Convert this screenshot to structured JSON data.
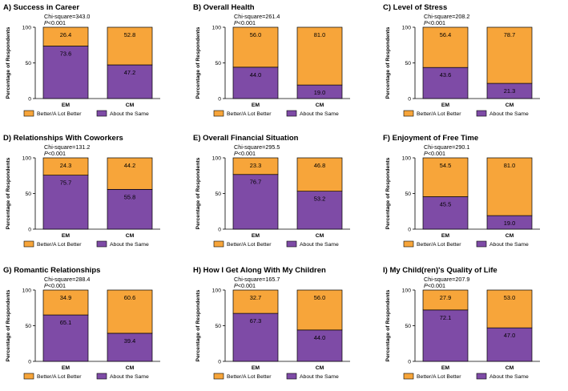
{
  "figure": {
    "legend": {
      "top_label": "Better/A Lot Better",
      "bottom_label": "About the Same"
    },
    "colors": {
      "top": "#F7A53A",
      "bottom": "#7E4BA6",
      "outline": "#000000"
    }
  },
  "chart_data": [
    {
      "type": "bar",
      "stacked": true,
      "title": "A) Success in Career",
      "stat_line1": "Chi-square=343.0",
      "stat_p": "P",
      "stat_rest": "<0.001",
      "ylabel": "Percentage of Respondents",
      "ylim": [
        0,
        100
      ],
      "yticks": [
        "0",
        "50",
        "100"
      ],
      "categories": [
        "EM",
        "CM"
      ],
      "series": [
        {
          "name": "About the Same",
          "values": [
            73.6,
            47.2
          ]
        },
        {
          "name": "Better/A Lot Better",
          "values": [
            26.4,
            52.8
          ]
        }
      ],
      "labels": {
        "bottom": [
          "73.6",
          "47.2"
        ],
        "top": [
          "26.4",
          "52.8"
        ]
      }
    },
    {
      "type": "bar",
      "stacked": true,
      "title": "B) Overall Health",
      "stat_line1": "Chi-square=261.4",
      "stat_p": "P",
      "stat_rest": "<0.001",
      "ylabel": "Percentage of Respondents",
      "ylim": [
        0,
        100
      ],
      "yticks": [
        "0",
        "50",
        "100"
      ],
      "categories": [
        "EM",
        "CM"
      ],
      "series": [
        {
          "name": "About the Same",
          "values": [
            44.0,
            19.0
          ]
        },
        {
          "name": "Better/A Lot Better",
          "values": [
            56.0,
            81.0
          ]
        }
      ],
      "labels": {
        "bottom": [
          "44.0",
          "19.0"
        ],
        "top": [
          "56.0",
          "81.0"
        ]
      }
    },
    {
      "type": "bar",
      "stacked": true,
      "title": "C) Level of Stress",
      "stat_line1": "Chi-square=208.2",
      "stat_p": "P",
      "stat_rest": "<0.001",
      "ylabel": "Percentage of Respondents",
      "ylim": [
        0,
        100
      ],
      "yticks": [
        "0",
        "50",
        "100"
      ],
      "categories": [
        "EM",
        "CM"
      ],
      "series": [
        {
          "name": "About the Same",
          "values": [
            43.6,
            21.3
          ]
        },
        {
          "name": "Better/A Lot Better",
          "values": [
            56.4,
            78.7
          ]
        }
      ],
      "labels": {
        "bottom": [
          "43.6",
          "21.3"
        ],
        "top": [
          "56.4",
          "78.7"
        ]
      }
    },
    {
      "type": "bar",
      "stacked": true,
      "title": "D) Relationships With Coworkers",
      "stat_line1": "Chi-square=131.2",
      "stat_p": "P",
      "stat_rest": "<0.001",
      "ylabel": "Percentage of Respondents",
      "ylim": [
        0,
        100
      ],
      "yticks": [
        "0",
        "50",
        "100"
      ],
      "categories": [
        "EM",
        "CM"
      ],
      "series": [
        {
          "name": "About the Same",
          "values": [
            75.7,
            55.8
          ]
        },
        {
          "name": "Better/A Lot Better",
          "values": [
            24.3,
            44.2
          ]
        }
      ],
      "labels": {
        "bottom": [
          "75.7",
          "55.8"
        ],
        "top": [
          "24.3",
          "44.2"
        ]
      }
    },
    {
      "type": "bar",
      "stacked": true,
      "title": "E) Overall Financial Situation",
      "stat_line1": "Chi-square=295.5",
      "stat_p": "P",
      "stat_rest": "<0.001",
      "ylabel": "Percentage of Respondents",
      "ylim": [
        0,
        100
      ],
      "yticks": [
        "0",
        "50",
        "100"
      ],
      "categories": [
        "EM",
        "CM"
      ],
      "series": [
        {
          "name": "About the Same",
          "values": [
            76.7,
            53.2
          ]
        },
        {
          "name": "Better/A Lot Better",
          "values": [
            23.3,
            46.8
          ]
        }
      ],
      "labels": {
        "bottom": [
          "76.7",
          "53.2"
        ],
        "top": [
          "23.3",
          "46.8"
        ]
      }
    },
    {
      "type": "bar",
      "stacked": true,
      "title": "F) Enjoyment of Free Time",
      "stat_line1": "Chi-square=290.1",
      "stat_p": "P",
      "stat_rest": "<0.001",
      "ylabel": "Percentage of Respondents",
      "ylim": [
        0,
        100
      ],
      "yticks": [
        "0",
        "50",
        "100"
      ],
      "categories": [
        "EM",
        "CM"
      ],
      "series": [
        {
          "name": "About the Same",
          "values": [
            45.5,
            19.0
          ]
        },
        {
          "name": "Better/A Lot Better",
          "values": [
            54.5,
            81.0
          ]
        }
      ],
      "labels": {
        "bottom": [
          "45.5",
          "19.0"
        ],
        "top": [
          "54.5",
          "81.0"
        ]
      }
    },
    {
      "type": "bar",
      "stacked": true,
      "title": "G) Romantic Relationships",
      "stat_line1": "Chi-square=288.4",
      "stat_p": "P",
      "stat_rest": "<0.001",
      "ylabel": "Percentage of Respondents",
      "ylim": [
        0,
        100
      ],
      "yticks": [
        "0",
        "50",
        "100"
      ],
      "categories": [
        "EM",
        "CM"
      ],
      "series": [
        {
          "name": "About the Same",
          "values": [
            65.1,
            39.4
          ]
        },
        {
          "name": "Better/A Lot Better",
          "values": [
            34.9,
            60.6
          ]
        }
      ],
      "labels": {
        "bottom": [
          "65.1",
          "39.4"
        ],
        "top": [
          "34.9",
          "60.6"
        ]
      }
    },
    {
      "type": "bar",
      "stacked": true,
      "title": "H) How I Get Along With My Children",
      "stat_line1": "Chi-square=165.7",
      "stat_p": "P",
      "stat_rest": "<0.001",
      "ylabel": "Percentage of Respondents",
      "ylim": [
        0,
        100
      ],
      "yticks": [
        "0",
        "50",
        "100"
      ],
      "categories": [
        "EM",
        "CM"
      ],
      "series": [
        {
          "name": "About the Same",
          "values": [
            67.3,
            44.0
          ]
        },
        {
          "name": "Better/A Lot Better",
          "values": [
            32.7,
            56.0
          ]
        }
      ],
      "labels": {
        "bottom": [
          "67.3",
          "44.0"
        ],
        "top": [
          "32.7",
          "56.0"
        ]
      }
    },
    {
      "type": "bar",
      "stacked": true,
      "title": "I) My Child(ren)'s Quality of  Life",
      "stat_line1": "Chi-square=207.9",
      "stat_p": "P",
      "stat_rest": "<0.001",
      "ylabel": "Percentage of Respondents",
      "ylim": [
        0,
        100
      ],
      "yticks": [
        "0",
        "50",
        "100"
      ],
      "categories": [
        "EM",
        "CM"
      ],
      "series": [
        {
          "name": "About the Same",
          "values": [
            72.1,
            47.0
          ]
        },
        {
          "name": "Better/A Lot Better",
          "values": [
            27.9,
            53.0
          ]
        }
      ],
      "labels": {
        "bottom": [
          "72.1",
          "47.0"
        ],
        "top": [
          "27.9",
          "53.0"
        ]
      }
    }
  ]
}
